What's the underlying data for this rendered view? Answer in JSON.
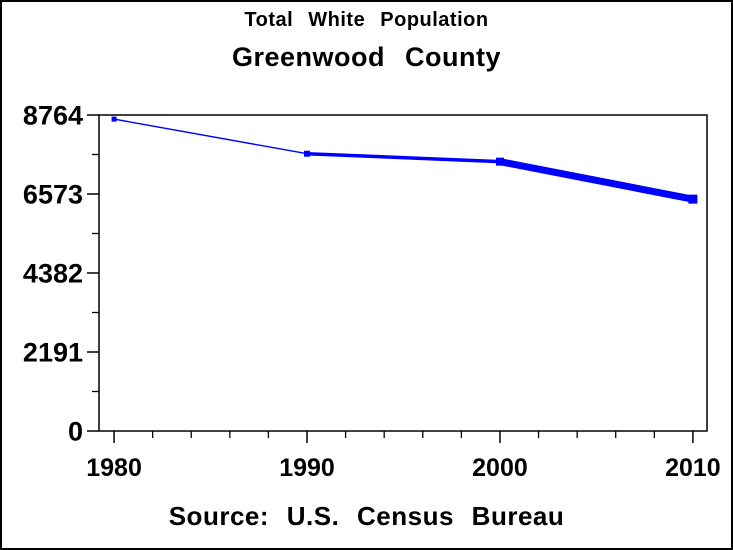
{
  "window": {
    "background": "#ffffff",
    "border_color": "#000000"
  },
  "chart_data": {
    "type": "line",
    "title": "Total White Population",
    "subtitle": "Greenwood County",
    "footnote": "Source: U.S. Census Bureau",
    "x": [
      1980,
      1990,
      2000,
      2010
    ],
    "series": [
      {
        "name": "Total White Population",
        "values": [
          8650,
          7690,
          7470,
          6430
        ],
        "color": "#0000ff",
        "marker": "square",
        "marker_sizes": [
          5,
          6,
          8,
          9
        ],
        "segment_widths": [
          1.4,
          3.5,
          7
        ]
      }
    ],
    "xlabel": "",
    "ylabel": "",
    "xlim": [
      1979.22,
      2010.73
    ],
    "ylim": [
      0,
      8764
    ],
    "xticks": [
      1980,
      1990,
      2000,
      2010
    ],
    "yticks": [
      0,
      2191,
      4382,
      6573,
      8764
    ],
    "x_minor_ticks": [
      1982,
      1984,
      1986,
      1988,
      1992,
      1994,
      1996,
      1998,
      2002,
      2004,
      2006,
      2008
    ],
    "y_minor_ticks": [
      1095.5,
      3286.5,
      5477.5,
      7668.5
    ],
    "grid": false,
    "legend": "none",
    "frame": true,
    "axis_color": "#000000",
    "text_color": "#000000"
  }
}
